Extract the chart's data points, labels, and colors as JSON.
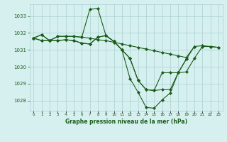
{
  "title": "Graphe pression niveau de la mer (hPa)",
  "ylim": [
    1027.4,
    1033.7
  ],
  "yticks": [
    1028,
    1029,
    1030,
    1031,
    1032,
    1033
  ],
  "background_color": "#d6f0f0",
  "grid_color": "#aacfcf",
  "line_color": "#1a5c1a",
  "series": [
    {
      "x": [
        0,
        1,
        2,
        3,
        4,
        5,
        6,
        7,
        8,
        9,
        10,
        11,
        12,
        13,
        14,
        15,
        16,
        17,
        18,
        19,
        20,
        21,
        22,
        23
      ],
      "y": [
        1031.7,
        1031.9,
        1031.55,
        1031.8,
        1031.8,
        1031.8,
        1031.75,
        1031.7,
        1031.6,
        1031.55,
        1031.45,
        1031.35,
        1031.25,
        1031.15,
        1031.05,
        1030.95,
        1030.85,
        1030.75,
        1030.65,
        1030.55,
        1031.2,
        1031.25,
        1031.2,
        1031.15
      ]
    },
    {
      "x": [
        0,
        1,
        2,
        3,
        4,
        5,
        6,
        7,
        8,
        9,
        10,
        11,
        12,
        13,
        14,
        15,
        16,
        17,
        18,
        19,
        20,
        21,
        22,
        23
      ],
      "y": [
        1031.7,
        1031.55,
        1031.55,
        1031.55,
        1031.6,
        1031.55,
        1031.4,
        1031.35,
        1031.75,
        1031.85,
        1031.5,
        1031.0,
        1030.5,
        1029.2,
        1028.65,
        1028.6,
        1028.65,
        1028.65,
        1029.65,
        1029.7,
        1030.5,
        1031.2,
        1031.2,
        1031.15
      ]
    },
    {
      "x": [
        0,
        1,
        2,
        3,
        4,
        5,
        6,
        7,
        8,
        9,
        10,
        11,
        12,
        13,
        14,
        15,
        16,
        17,
        18,
        19,
        20
      ],
      "y": [
        1031.7,
        1031.9,
        1031.55,
        1031.8,
        1031.8,
        1031.8,
        1031.75,
        1033.4,
        1033.45,
        1031.85,
        1031.5,
        1031.0,
        1029.3,
        1028.5,
        1027.6,
        1027.55,
        1028.05,
        1028.45,
        1029.65,
        1030.45,
        1031.2
      ]
    },
    {
      "x": [
        0,
        1,
        2,
        3,
        4,
        5,
        6,
        7,
        8,
        9,
        10,
        11,
        12,
        13,
        14,
        15,
        16,
        17,
        18,
        19
      ],
      "y": [
        1031.7,
        1031.55,
        1031.55,
        1031.55,
        1031.6,
        1031.55,
        1031.4,
        1031.35,
        1031.75,
        1031.85,
        1031.5,
        1031.0,
        1030.5,
        1029.2,
        1028.65,
        1028.6,
        1029.65,
        1029.65,
        1029.65,
        1030.45
      ]
    }
  ]
}
